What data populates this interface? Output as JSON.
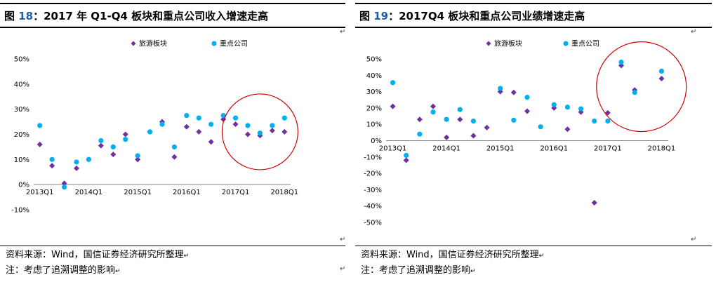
{
  "panels": [
    {
      "title_prefix": "图 ",
      "title_num": "18",
      "title_rest": "：2017 年 Q1-Q4 板块和重点公司收入增速走高",
      "source": "资料来源：Wind，国信证券经济研究所整理",
      "note": "注：考虑了追溯调整的影响"
    },
    {
      "title_prefix": "图 ",
      "title_num": "19",
      "title_rest": "：2017Q4 板块和重点公司业绩增速走高",
      "source": "资料来源：Wind，国信证券经济研究所整理",
      "note": "注：考虑了追溯调整的影响"
    }
  ],
  "return_mark": "↵",
  "chart_data": [
    {
      "type": "scatter",
      "title": "2017 年 Q1-Q4 板块和重点公司收入增速走高",
      "legend_position": "top",
      "x": [
        "2013Q1",
        "2013Q2",
        "2013Q3",
        "2013Q4",
        "2014Q1",
        "2014Q2",
        "2014Q3",
        "2014Q4",
        "2015Q1",
        "2015Q2",
        "2015Q3",
        "2015Q4",
        "2016Q1",
        "2016Q2",
        "2016Q3",
        "2016Q4",
        "2017Q1",
        "2017Q2",
        "2017Q3",
        "2017Q4",
        "2018Q1"
      ],
      "x_tick_labels": [
        "2013Q1",
        "2014Q1",
        "2015Q1",
        "2016Q1",
        "2017Q1",
        "2018Q1"
      ],
      "series": [
        {
          "name": "旅游板块",
          "color": "#7030a0",
          "marker": "diamond",
          "values": [
            16,
            7.5,
            0.5,
            6.5,
            10,
            15.5,
            12,
            20,
            10,
            21,
            25,
            11,
            23,
            21,
            17,
            26,
            24,
            20,
            19.5,
            21.5,
            21
          ]
        },
        {
          "name": "重点公司",
          "color": "#00b0f0",
          "marker": "circle",
          "values": [
            23.5,
            10,
            -1,
            9,
            10,
            17.5,
            15,
            18,
            11.5,
            21,
            24,
            15,
            27.5,
            26.5,
            24,
            27.5,
            26.5,
            23.5,
            20.5,
            23.5,
            26.5
          ]
        }
      ],
      "ylim": [
        -10,
        50
      ],
      "y_ticks": [
        -10,
        0,
        10,
        20,
        30,
        40,
        50
      ],
      "y_tick_labels": [
        "-10%",
        "0%",
        "10%",
        "20%",
        "30%",
        "40%",
        "50%"
      ],
      "highlight_circle": {
        "x_index_center": 18,
        "y_center": 21
      }
    },
    {
      "type": "scatter",
      "title": "2017Q4 板块和重点公司业绩增速走高",
      "legend_position": "top",
      "x": [
        "2013Q1",
        "2013Q2",
        "2013Q3",
        "2013Q4",
        "2014Q1",
        "2014Q2",
        "2014Q3",
        "2014Q4",
        "2015Q1",
        "2015Q2",
        "2015Q3",
        "2015Q4",
        "2016Q1",
        "2016Q2",
        "2016Q3",
        "2016Q4",
        "2017Q1",
        "2017Q2",
        "2017Q3",
        "2017Q4",
        "2018Q1"
      ],
      "x_tick_labels": [
        "2013Q1",
        "2014Q1",
        "2015Q1",
        "2016Q1",
        "2017Q1",
        "2018Q1"
      ],
      "series": [
        {
          "name": "旅游板块",
          "color": "#7030a0",
          "marker": "diamond",
          "values": [
            21,
            -12,
            13,
            21,
            2,
            13,
            3,
            8,
            30,
            29.5,
            18,
            null,
            20,
            7,
            17.5,
            -38,
            17,
            46,
            31,
            null,
            38
          ]
        },
        {
          "name": "重点公司",
          "color": "#00b0f0",
          "marker": "circle",
          "values": [
            35.5,
            -9,
            4,
            17.5,
            13,
            19,
            12,
            null,
            32,
            12.5,
            26.5,
            8.5,
            22,
            20.5,
            19.5,
            12,
            12,
            48,
            29.5,
            null,
            42.5
          ]
        }
      ],
      "ylim": [
        -50,
        50
      ],
      "y_ticks": [
        -50,
        -40,
        -30,
        -20,
        -10,
        0,
        10,
        20,
        30,
        40,
        50
      ],
      "y_tick_labels": [
        "-50%",
        "-40%",
        "-30%",
        "-20%",
        "-10%",
        "0%",
        "10%",
        "20%",
        "30%",
        "40%",
        "50%"
      ],
      "highlight_circle": {
        "x_index_center": 18.5,
        "y_center": 33
      }
    }
  ]
}
